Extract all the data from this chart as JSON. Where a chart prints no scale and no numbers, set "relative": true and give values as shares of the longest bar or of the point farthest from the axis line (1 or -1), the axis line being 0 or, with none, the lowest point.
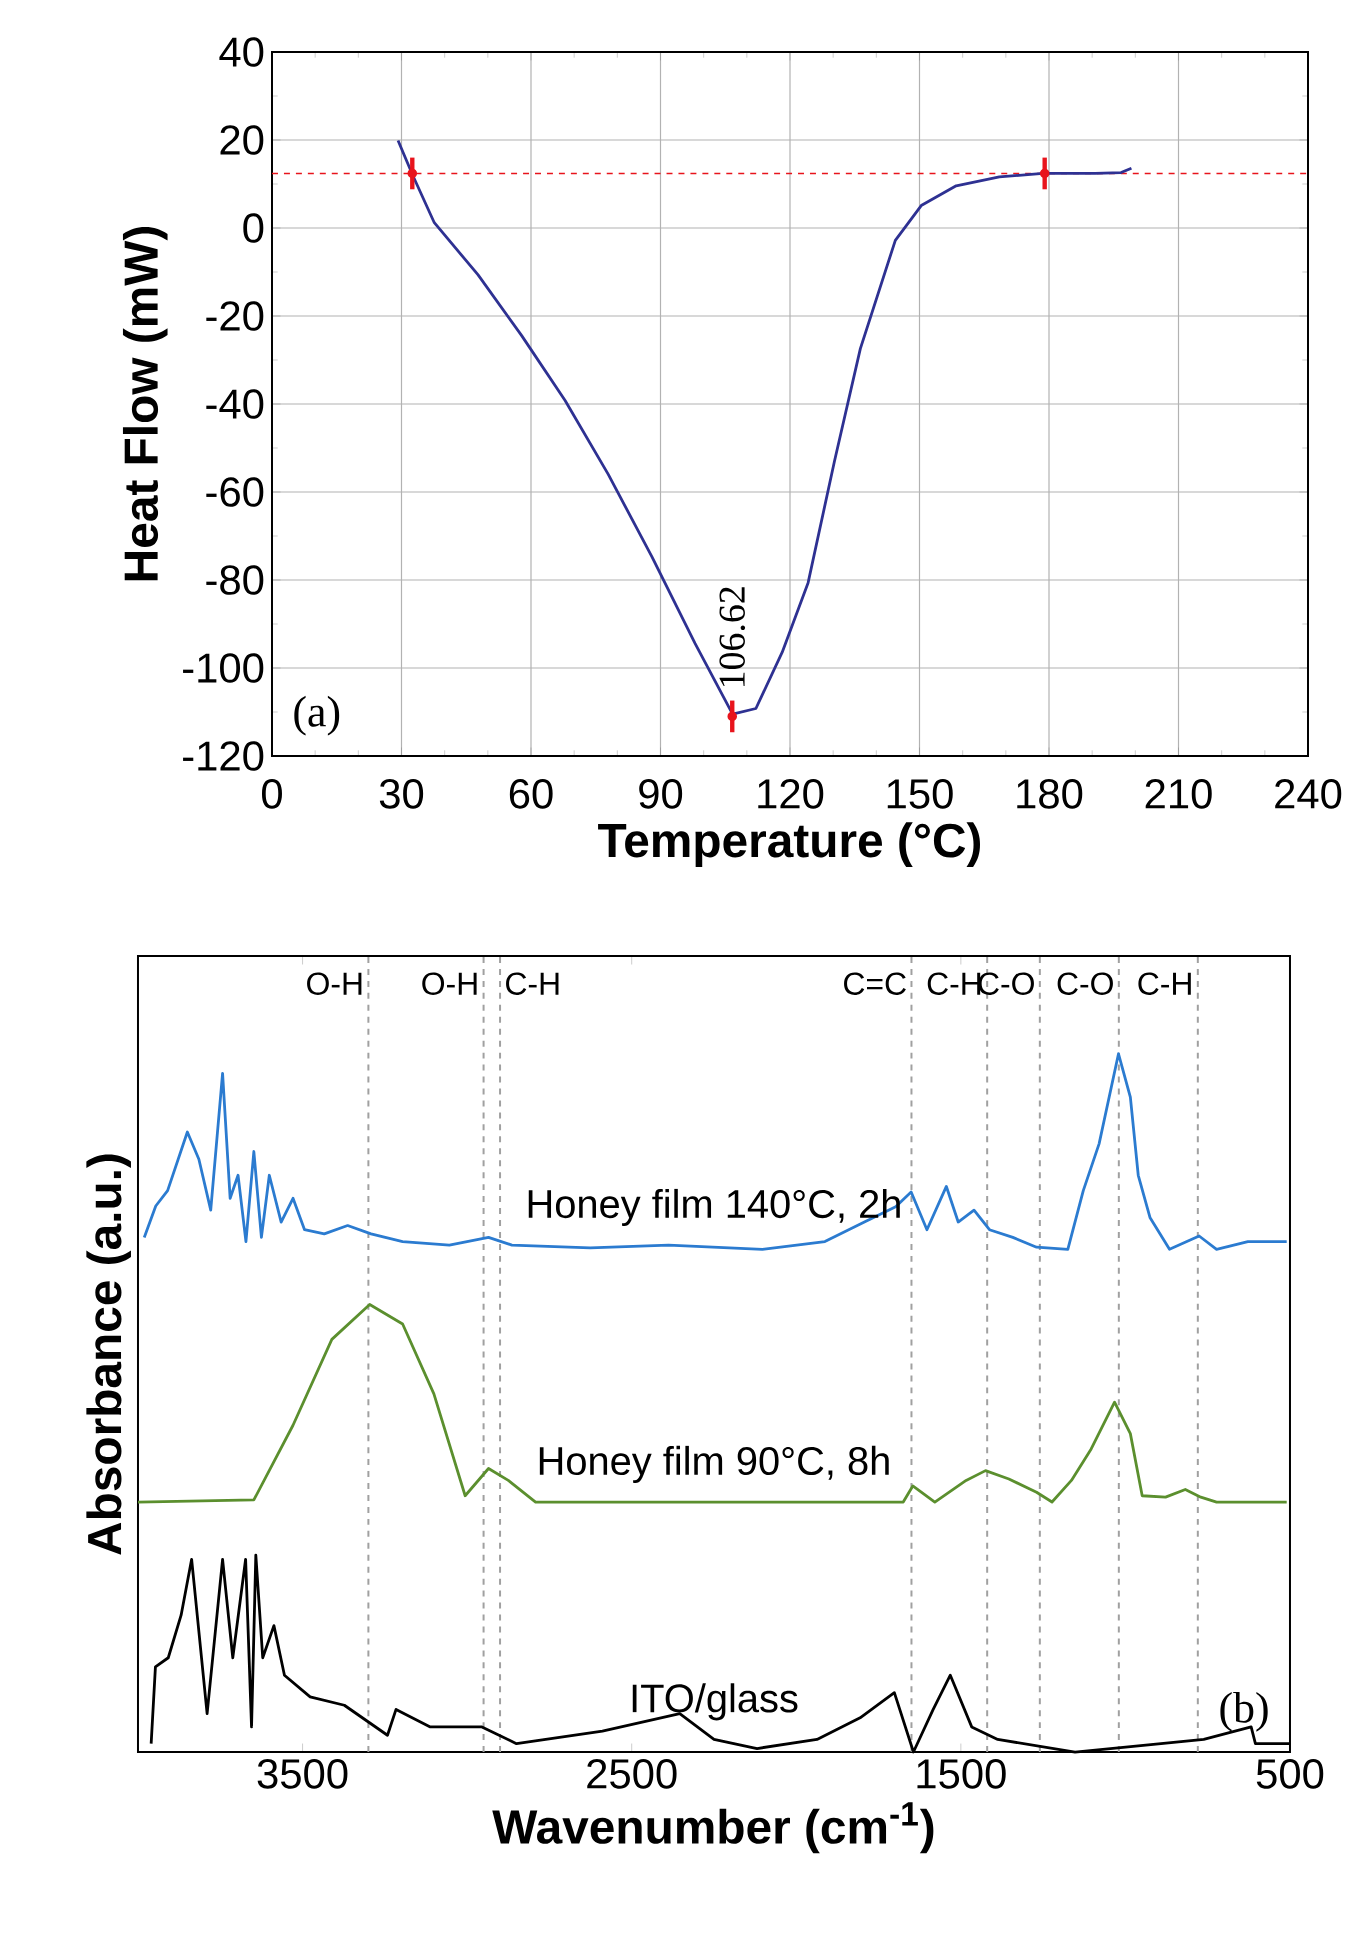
{
  "chart_data": [
    {
      "type": "line",
      "xlabel": "Temperature (°C)",
      "ylabel": "Heat Flow (mW)",
      "xlim": [
        0,
        240
      ],
      "ylim": [
        -120,
        40
      ],
      "xticks": [
        0,
        30,
        60,
        90,
        120,
        150,
        180,
        210,
        240
      ],
      "yticks": [
        -120,
        -100,
        -80,
        -60,
        -40,
        -20,
        0,
        20,
        40
      ],
      "grid": true,
      "annotations": [
        {
          "text": "106.62",
          "x": 106.62,
          "y": -111
        },
        "(a)"
      ],
      "ref_lines": [
        {
          "axis": "y",
          "value": 12.4,
          "color": "#e8141c",
          "line_style": "dashed"
        }
      ],
      "series": [
        {
          "color": "#2e3192",
          "x": [
            29.2,
            32.6,
            37.6,
            47.7,
            57.8,
            67.9,
            77.9,
            88,
            98,
            106.7,
            112.1,
            118.2,
            124.2,
            130.3,
            136.3,
            144.4,
            150.4,
            158.5,
            168.5,
            178.6,
            190.7,
            196.7,
            199.1
          ],
          "values": [
            19.9,
            12,
            1.2,
            -10.6,
            -24.4,
            -39.2,
            -56,
            -74.7,
            -94.4,
            -110.5,
            -109.2,
            -96.4,
            -80.6,
            -53,
            -27.4,
            -2.8,
            5.1,
            9.6,
            11.6,
            12.4,
            12.4,
            12.6,
            13.6
          ]
        },
        {
          "type": "scatter",
          "color": "#e8141c",
          "x": [
            32.5,
            106.62,
            179
          ],
          "values": [
            12.4,
            -111,
            12.4
          ],
          "errors": [
            3.6,
            3.6,
            3.6
          ]
        }
      ]
    },
    {
      "type": "line",
      "relative": true,
      "xlabel": "Wavenumber (cm$^{-1}$)",
      "ylabel": "Absorbance (a.u.)",
      "xlim": [
        4000,
        500
      ],
      "xticks": [
        3500,
        2500,
        1500,
        500
      ],
      "annotations": [
        "(b)"
      ],
      "ref_lines": [
        {
          "axis": "x",
          "value": 3300,
          "label": "O-H",
          "color": "#a0a0a0",
          "line_style": "dashed"
        },
        {
          "axis": "x",
          "value": 2950,
          "label": "O-H",
          "color": "#a0a0a0",
          "line_style": "dashed"
        },
        {
          "axis": "x",
          "value": 2900,
          "label": "C-H",
          "color": "#a0a0a0",
          "line_style": "dashed"
        },
        {
          "axis": "x",
          "value": 1650,
          "label": "C=C",
          "color": "#a0a0a0",
          "line_style": "dashed"
        },
        {
          "axis": "x",
          "value": 1420,
          "label": "C-H",
          "color": "#a0a0a0",
          "line_style": "dashed"
        },
        {
          "axis": "x",
          "value": 1260,
          "label": "C-O",
          "color": "#a0a0a0",
          "line_style": "dashed"
        },
        {
          "axis": "x",
          "value": 1020,
          "label": "C-O",
          "color": "#a0a0a0",
          "line_style": "dashed"
        },
        {
          "axis": "x",
          "value": 780,
          "label": "C-H",
          "color": "#a0a0a0",
          "line_style": "dashed"
        }
      ],
      "series": [
        {
          "name": "Honey film 140°C, 2h",
          "color": "#2b7bd0",
          "x": [
            3981,
            3946,
            3910,
            3850,
            3815,
            3779,
            3743,
            3720,
            3696,
            3672,
            3648,
            3625,
            3601,
            3565,
            3529,
            3494,
            3434,
            3363,
            3292,
            3196,
            3054,
            2935,
            2864,
            2626,
            2388,
            2103,
            1913,
            1793,
            1698,
            1651,
            1603,
            1544,
            1508,
            1460,
            1413,
            1342,
            1270,
            1175,
            1128,
            1080,
            1021,
            985,
            961,
            925,
            866,
            776,
            723,
            628,
            510
          ],
          "values": [
            0.737,
            0.782,
            0.804,
            0.888,
            0.849,
            0.776,
            0.972,
            0.793,
            0.826,
            0.731,
            0.86,
            0.737,
            0.826,
            0.759,
            0.793,
            0.748,
            0.742,
            0.754,
            0.742,
            0.731,
            0.726,
            0.737,
            0.726,
            0.722,
            0.726,
            0.72,
            0.731,
            0.759,
            0.781,
            0.802,
            0.748,
            0.81,
            0.759,
            0.776,
            0.748,
            0.737,
            0.723,
            0.72,
            0.804,
            0.871,
            1.0,
            0.938,
            0.826,
            0.765,
            0.72,
            0.739,
            0.72,
            0.731,
            0.731
          ]
        },
        {
          "name": "Honey film 90°C, 8h",
          "color": "#5b8f2e",
          "x": [
            4000,
            3648,
            3529,
            3411,
            3296,
            3196,
            3101,
            3006,
            2935,
            2875,
            2792,
            1675,
            1646,
            1579,
            1484,
            1425,
            1354,
            1270,
            1223,
            1164,
            1104,
            1033,
            985,
            949,
            878,
            818,
            771,
            723,
            510
          ],
          "values": [
            0.358,
            0.361,
            0.468,
            0.591,
            0.641,
            0.613,
            0.513,
            0.367,
            0.406,
            0.389,
            0.358,
            0.358,
            0.381,
            0.358,
            0.389,
            0.403,
            0.391,
            0.372,
            0.358,
            0.389,
            0.434,
            0.501,
            0.456,
            0.367,
            0.365,
            0.376,
            0.365,
            0.358,
            0.358
          ]
        },
        {
          "name": "ITO/glass",
          "color": "#000000",
          "x": [
            3960,
            3947,
            3908,
            3869,
            3837,
            3790,
            3743,
            3712,
            3673,
            3655,
            3642,
            3621,
            3587,
            3555,
            3477,
            3373,
            3242,
            3216,
            3112,
            2955,
            2850,
            2589,
            2354,
            2250,
            2119,
            1937,
            1806,
            1702,
            1644,
            1584,
            1532,
            1467,
            1388,
            1153,
            892,
            762,
            618,
            605,
            501
          ],
          "values": [
            0.012,
            0.122,
            0.135,
            0.196,
            0.276,
            0.055,
            0.276,
            0.135,
            0.276,
            0.036,
            0.282,
            0.135,
            0.181,
            0.11,
            0.079,
            0.067,
            0.024,
            0.061,
            0.036,
            0.036,
            0.012,
            0.03,
            0.055,
            0.018,
            0.005,
            0.018,
            0.049,
            0.085,
            0.0,
            0.061,
            0.11,
            0.036,
            0.018,
            0.0,
            0.012,
            0.018,
            0.036,
            0.012,
            0.012
          ]
        }
      ]
    }
  ]
}
